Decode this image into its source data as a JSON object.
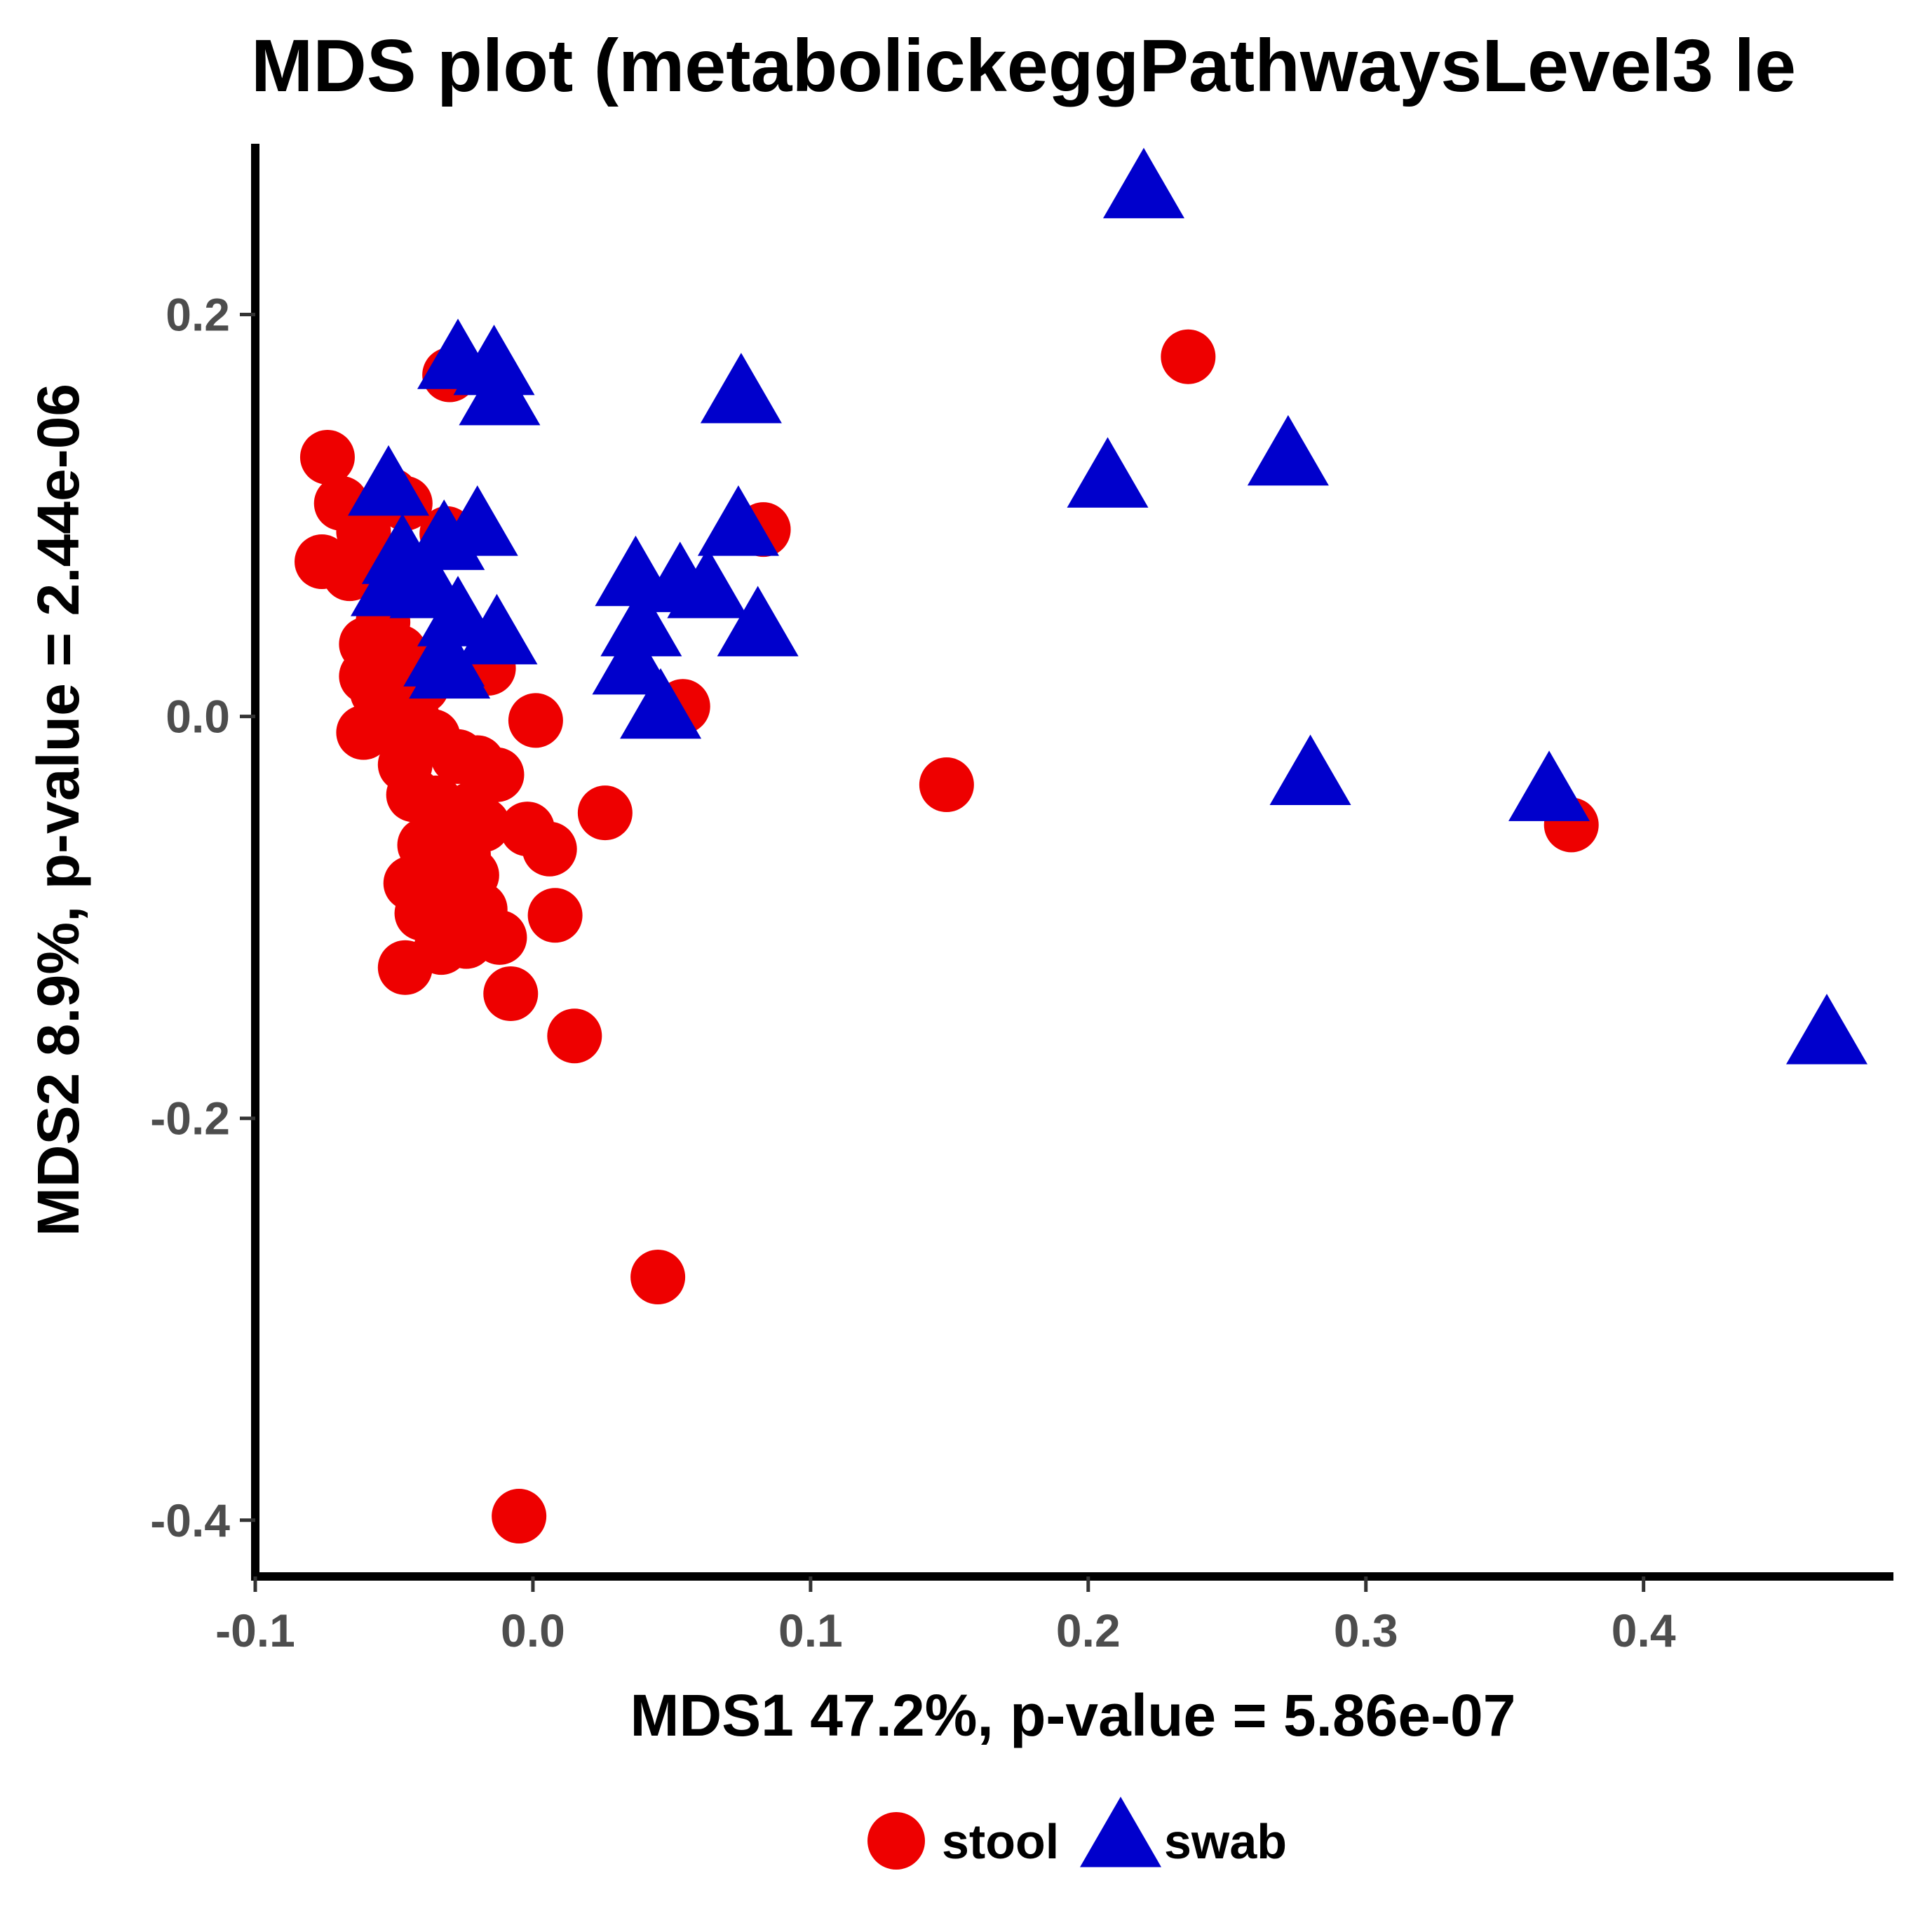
{
  "chart_data": {
    "type": "scatter",
    "title": "MDS plot (metabolickeggPathwaysLevel3 le",
    "xlabel": "MDS1 47.2%, p-value = 5.86e-07",
    "ylabel": "MDS2 8.9%, p-value = 2.44e-06",
    "xlim": [
      -0.1,
      0.49
    ],
    "ylim": [
      -0.428,
      0.285
    ],
    "xticks": [
      -0.1,
      0.0,
      0.1,
      0.2,
      0.3,
      0.4
    ],
    "xtick_labels": [
      "-0.1",
      "0.0",
      "0.1",
      "0.2",
      "0.3",
      "0.4"
    ],
    "yticks": [
      -0.4,
      -0.2,
      0.0,
      0.2
    ],
    "ytick_labels": [
      "-0.4",
      "-0.2",
      "0.0",
      "0.2"
    ],
    "grid": false,
    "legend": {
      "position": "bottom",
      "entries": [
        "stool",
        "swab"
      ]
    },
    "series": [
      {
        "name": "stool",
        "marker": "circle",
        "color": "#ee0000",
        "points": [
          [
            -0.03,
            0.17
          ],
          [
            -0.074,
            0.129
          ],
          [
            -0.069,
            0.106
          ],
          [
            -0.051,
            0.11
          ],
          [
            -0.046,
            0.106
          ],
          [
            -0.061,
            0.092
          ],
          [
            -0.031,
            0.091
          ],
          [
            -0.076,
            0.077
          ],
          [
            -0.062,
            0.073
          ],
          [
            -0.066,
            0.071
          ],
          [
            -0.06,
            0.036
          ],
          [
            -0.054,
            0.047
          ],
          [
            -0.048,
            0.032
          ],
          [
            -0.06,
            0.02
          ],
          [
            -0.056,
            0.012
          ],
          [
            -0.045,
            0.01
          ],
          [
            -0.04,
            0.015
          ],
          [
            -0.016,
            0.024
          ],
          [
            -0.061,
            -0.008
          ],
          [
            -0.051,
            -0.005
          ],
          [
            -0.043,
            -0.002
          ],
          [
            -0.036,
            -0.01
          ],
          [
            -0.046,
            -0.024
          ],
          [
            -0.027,
            -0.02
          ],
          [
            -0.02,
            -0.023
          ],
          [
            -0.013,
            -0.029
          ],
          [
            -0.043,
            -0.039
          ],
          [
            -0.035,
            -0.043
          ],
          [
            -0.022,
            -0.046
          ],
          [
            -0.033,
            -0.054
          ],
          [
            -0.018,
            -0.054
          ],
          [
            -0.039,
            -0.064
          ],
          [
            -0.025,
            -0.069
          ],
          [
            -0.035,
            -0.068
          ],
          [
            -0.044,
            -0.083
          ],
          [
            -0.031,
            -0.086
          ],
          [
            -0.022,
            -0.079
          ],
          [
            -0.04,
            -0.098
          ],
          [
            -0.031,
            -0.104
          ],
          [
            -0.019,
            -0.096
          ],
          [
            -0.024,
            -0.112
          ],
          [
            -0.012,
            -0.11
          ],
          [
            -0.033,
            -0.115
          ],
          [
            -0.046,
            -0.125
          ],
          [
            -0.008,
            -0.138
          ],
          [
            0.001,
            -0.002
          ],
          [
            -0.002,
            -0.056
          ],
          [
            0.006,
            -0.066
          ],
          [
            0.008,
            -0.099
          ],
          [
            0.015,
            -0.159
          ],
          [
            0.026,
            -0.048
          ],
          [
            0.054,
            0.005
          ],
          [
            0.083,
            0.093
          ],
          [
            0.149,
            -0.034
          ],
          [
            0.236,
            0.179
          ],
          [
            0.374,
            -0.054
          ],
          [
            0.045,
            -0.279
          ],
          [
            -0.005,
            -0.398
          ]
        ]
      },
      {
        "name": "swab",
        "marker": "triangle",
        "color": "#0000cc",
        "points": [
          [
            -0.027,
            0.176
          ],
          [
            -0.014,
            0.173
          ],
          [
            -0.012,
            0.158
          ],
          [
            -0.052,
            0.113
          ],
          [
            -0.02,
            0.093
          ],
          [
            -0.032,
            0.086
          ],
          [
            -0.047,
            0.079
          ],
          [
            -0.051,
            0.063
          ],
          [
            -0.037,
            0.062
          ],
          [
            -0.027,
            0.048
          ],
          [
            -0.013,
            0.039
          ],
          [
            -0.032,
            0.028
          ],
          [
            -0.03,
            0.022
          ],
          [
            0.037,
            0.068
          ],
          [
            0.053,
            0.065
          ],
          [
            0.063,
            0.062
          ],
          [
            0.039,
            0.043
          ],
          [
            0.036,
            0.024
          ],
          [
            0.046,
            0.002
          ],
          [
            0.075,
            0.159
          ],
          [
            0.074,
            0.093
          ],
          [
            0.081,
            0.043
          ],
          [
            0.22,
            0.261
          ],
          [
            0.207,
            0.117
          ],
          [
            0.272,
            0.128
          ],
          [
            0.28,
            -0.031
          ],
          [
            0.366,
            -0.039
          ],
          [
            0.466,
            -0.16
          ]
        ]
      }
    ]
  }
}
